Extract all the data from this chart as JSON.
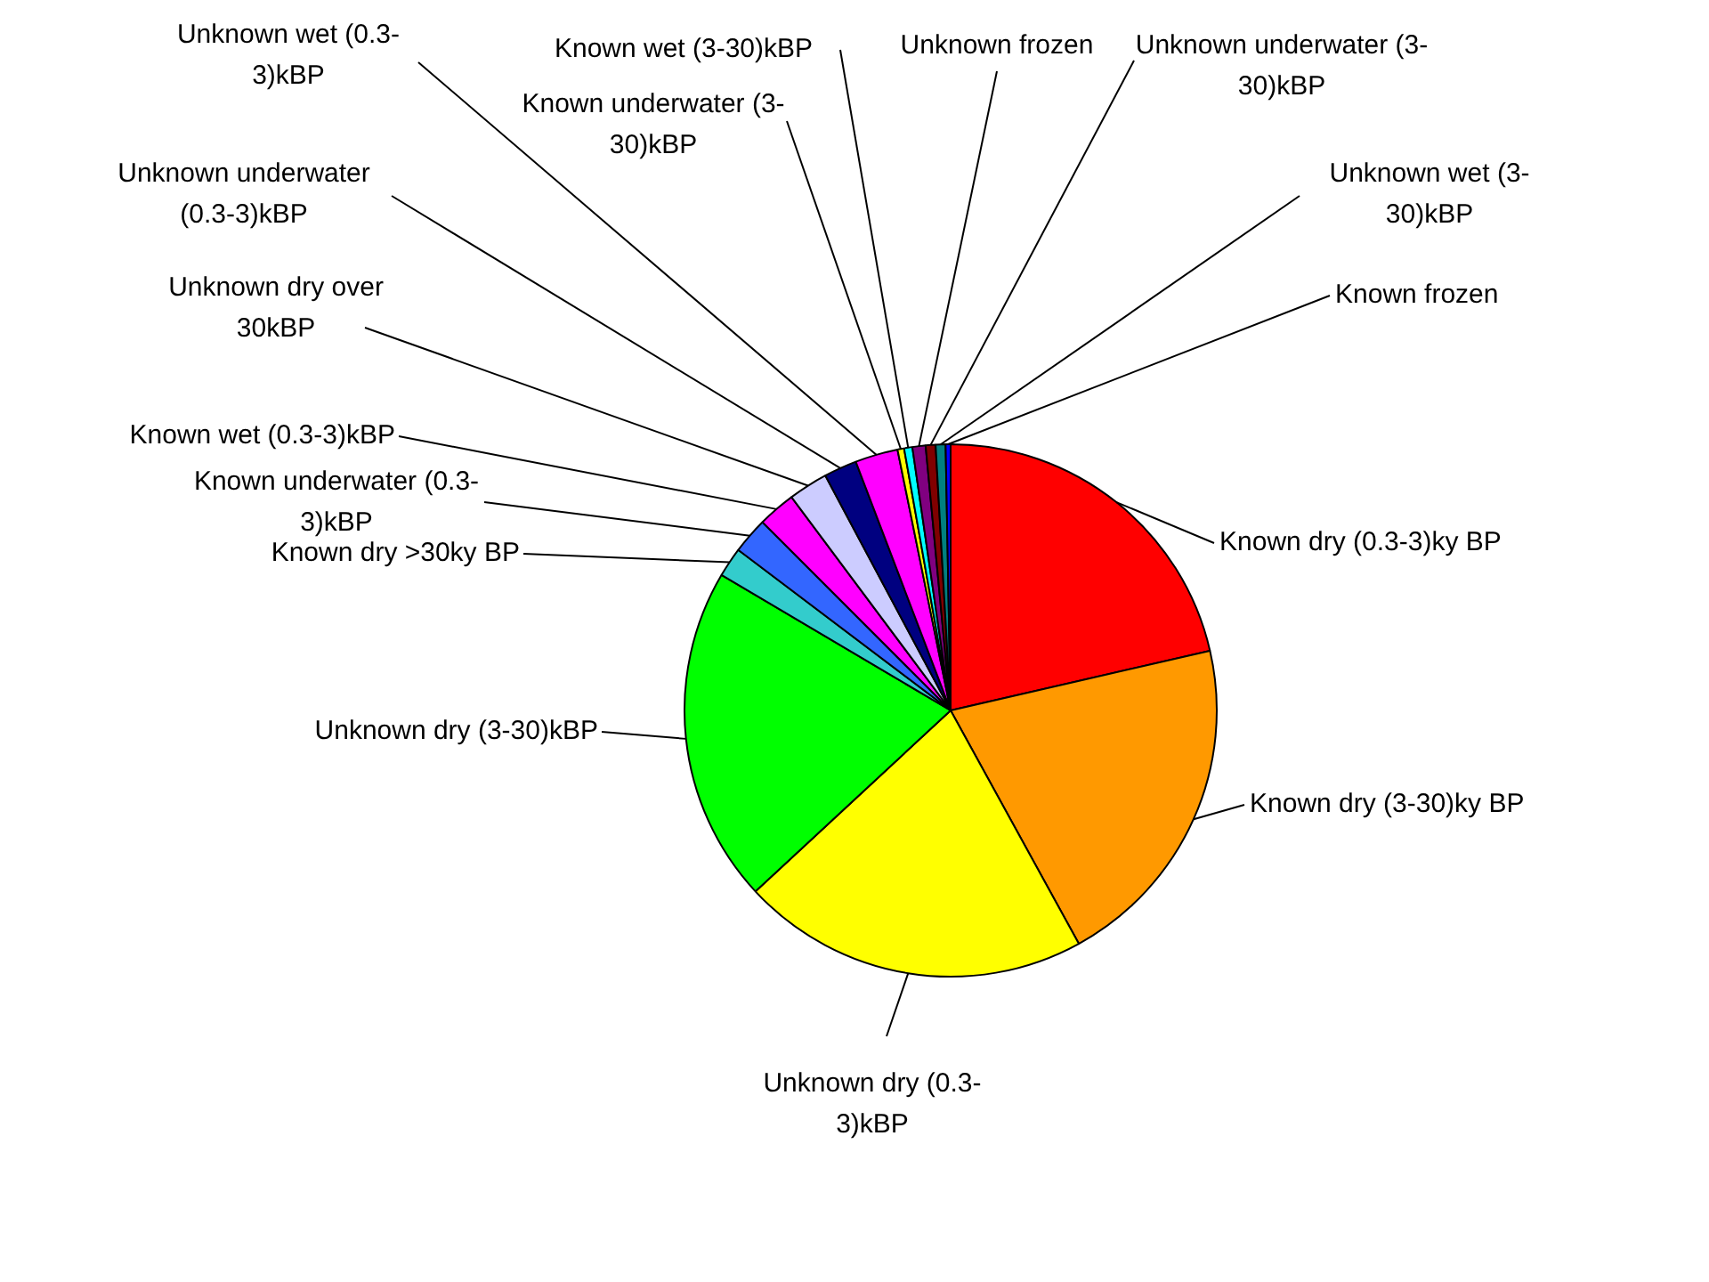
{
  "chart_data": {
    "type": "pie",
    "legend": false,
    "categories": [
      "Known dry (0.3-3)ky BP",
      "Known dry (3-30)ky BP",
      "Unknown dry (0.3-3)kBP",
      "Unknown dry (3-30)kBP",
      "Known dry >30ky BP",
      "Known underwater (0.3-3)kBP",
      "Known wet (0.3-3)kBP",
      "Unknown dry over 30kBP",
      "Unknown underwater (0.3-3)kBP",
      "Unknown wet (0.3-3)kBP",
      "Known underwater (3-30)kBP",
      "Known wet (3-30)kBP",
      "Unknown frozen",
      "Unknown underwater (3-30)kBP",
      "Unknown wet (3-30)kBP",
      "Known frozen"
    ],
    "values": [
      21.4,
      20.6,
      21.1,
      20.4,
      1.8,
      2.2,
      2.3,
      2.4,
      2.0,
      2.6,
      0.4,
      0.5,
      0.8,
      0.6,
      0.6,
      0.3
    ],
    "colors": [
      "#ff0000",
      "#ff9900",
      "#ffff00",
      "#00ff00",
      "#33cccc",
      "#3366ff",
      "#ff00ff",
      "#ccccff",
      "#000080",
      "#ff00ff",
      "#ffff00",
      "#00ffff",
      "#800080",
      "#800000",
      "#008080",
      "#0000ff"
    ]
  }
}
